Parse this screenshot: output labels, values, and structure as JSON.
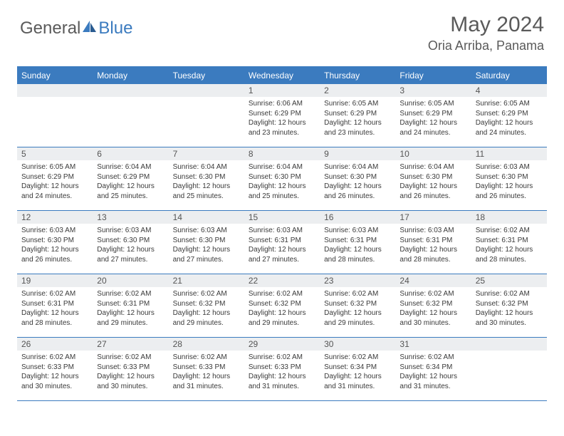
{
  "brand": {
    "part1": "General",
    "part2": "Blue"
  },
  "title": "May 2024",
  "location": "Oria Arriba, Panama",
  "colors": {
    "brand_blue": "#3b7bbf",
    "text_gray": "#5a5a5a",
    "band_bg": "#eceef0",
    "cell_text": "#3a3a3a"
  },
  "weekdays": [
    "Sunday",
    "Monday",
    "Tuesday",
    "Wednesday",
    "Thursday",
    "Friday",
    "Saturday"
  ],
  "weeks": [
    [
      {
        "n": "",
        "sr": "",
        "ss": "",
        "dl": ""
      },
      {
        "n": "",
        "sr": "",
        "ss": "",
        "dl": ""
      },
      {
        "n": "",
        "sr": "",
        "ss": "",
        "dl": ""
      },
      {
        "n": "1",
        "sr": "Sunrise: 6:06 AM",
        "ss": "Sunset: 6:29 PM",
        "dl": "Daylight: 12 hours and 23 minutes."
      },
      {
        "n": "2",
        "sr": "Sunrise: 6:05 AM",
        "ss": "Sunset: 6:29 PM",
        "dl": "Daylight: 12 hours and 23 minutes."
      },
      {
        "n": "3",
        "sr": "Sunrise: 6:05 AM",
        "ss": "Sunset: 6:29 PM",
        "dl": "Daylight: 12 hours and 24 minutes."
      },
      {
        "n": "4",
        "sr": "Sunrise: 6:05 AM",
        "ss": "Sunset: 6:29 PM",
        "dl": "Daylight: 12 hours and 24 minutes."
      }
    ],
    [
      {
        "n": "5",
        "sr": "Sunrise: 6:05 AM",
        "ss": "Sunset: 6:29 PM",
        "dl": "Daylight: 12 hours and 24 minutes."
      },
      {
        "n": "6",
        "sr": "Sunrise: 6:04 AM",
        "ss": "Sunset: 6:29 PM",
        "dl": "Daylight: 12 hours and 25 minutes."
      },
      {
        "n": "7",
        "sr": "Sunrise: 6:04 AM",
        "ss": "Sunset: 6:30 PM",
        "dl": "Daylight: 12 hours and 25 minutes."
      },
      {
        "n": "8",
        "sr": "Sunrise: 6:04 AM",
        "ss": "Sunset: 6:30 PM",
        "dl": "Daylight: 12 hours and 25 minutes."
      },
      {
        "n": "9",
        "sr": "Sunrise: 6:04 AM",
        "ss": "Sunset: 6:30 PM",
        "dl": "Daylight: 12 hours and 26 minutes."
      },
      {
        "n": "10",
        "sr": "Sunrise: 6:04 AM",
        "ss": "Sunset: 6:30 PM",
        "dl": "Daylight: 12 hours and 26 minutes."
      },
      {
        "n": "11",
        "sr": "Sunrise: 6:03 AM",
        "ss": "Sunset: 6:30 PM",
        "dl": "Daylight: 12 hours and 26 minutes."
      }
    ],
    [
      {
        "n": "12",
        "sr": "Sunrise: 6:03 AM",
        "ss": "Sunset: 6:30 PM",
        "dl": "Daylight: 12 hours and 26 minutes."
      },
      {
        "n": "13",
        "sr": "Sunrise: 6:03 AM",
        "ss": "Sunset: 6:30 PM",
        "dl": "Daylight: 12 hours and 27 minutes."
      },
      {
        "n": "14",
        "sr": "Sunrise: 6:03 AM",
        "ss": "Sunset: 6:30 PM",
        "dl": "Daylight: 12 hours and 27 minutes."
      },
      {
        "n": "15",
        "sr": "Sunrise: 6:03 AM",
        "ss": "Sunset: 6:31 PM",
        "dl": "Daylight: 12 hours and 27 minutes."
      },
      {
        "n": "16",
        "sr": "Sunrise: 6:03 AM",
        "ss": "Sunset: 6:31 PM",
        "dl": "Daylight: 12 hours and 28 minutes."
      },
      {
        "n": "17",
        "sr": "Sunrise: 6:03 AM",
        "ss": "Sunset: 6:31 PM",
        "dl": "Daylight: 12 hours and 28 minutes."
      },
      {
        "n": "18",
        "sr": "Sunrise: 6:02 AM",
        "ss": "Sunset: 6:31 PM",
        "dl": "Daylight: 12 hours and 28 minutes."
      }
    ],
    [
      {
        "n": "19",
        "sr": "Sunrise: 6:02 AM",
        "ss": "Sunset: 6:31 PM",
        "dl": "Daylight: 12 hours and 28 minutes."
      },
      {
        "n": "20",
        "sr": "Sunrise: 6:02 AM",
        "ss": "Sunset: 6:31 PM",
        "dl": "Daylight: 12 hours and 29 minutes."
      },
      {
        "n": "21",
        "sr": "Sunrise: 6:02 AM",
        "ss": "Sunset: 6:32 PM",
        "dl": "Daylight: 12 hours and 29 minutes."
      },
      {
        "n": "22",
        "sr": "Sunrise: 6:02 AM",
        "ss": "Sunset: 6:32 PM",
        "dl": "Daylight: 12 hours and 29 minutes."
      },
      {
        "n": "23",
        "sr": "Sunrise: 6:02 AM",
        "ss": "Sunset: 6:32 PM",
        "dl": "Daylight: 12 hours and 29 minutes."
      },
      {
        "n": "24",
        "sr": "Sunrise: 6:02 AM",
        "ss": "Sunset: 6:32 PM",
        "dl": "Daylight: 12 hours and 30 minutes."
      },
      {
        "n": "25",
        "sr": "Sunrise: 6:02 AM",
        "ss": "Sunset: 6:32 PM",
        "dl": "Daylight: 12 hours and 30 minutes."
      }
    ],
    [
      {
        "n": "26",
        "sr": "Sunrise: 6:02 AM",
        "ss": "Sunset: 6:33 PM",
        "dl": "Daylight: 12 hours and 30 minutes."
      },
      {
        "n": "27",
        "sr": "Sunrise: 6:02 AM",
        "ss": "Sunset: 6:33 PM",
        "dl": "Daylight: 12 hours and 30 minutes."
      },
      {
        "n": "28",
        "sr": "Sunrise: 6:02 AM",
        "ss": "Sunset: 6:33 PM",
        "dl": "Daylight: 12 hours and 31 minutes."
      },
      {
        "n": "29",
        "sr": "Sunrise: 6:02 AM",
        "ss": "Sunset: 6:33 PM",
        "dl": "Daylight: 12 hours and 31 minutes."
      },
      {
        "n": "30",
        "sr": "Sunrise: 6:02 AM",
        "ss": "Sunset: 6:34 PM",
        "dl": "Daylight: 12 hours and 31 minutes."
      },
      {
        "n": "31",
        "sr": "Sunrise: 6:02 AM",
        "ss": "Sunset: 6:34 PM",
        "dl": "Daylight: 12 hours and 31 minutes."
      },
      {
        "n": "",
        "sr": "",
        "ss": "",
        "dl": ""
      }
    ]
  ]
}
